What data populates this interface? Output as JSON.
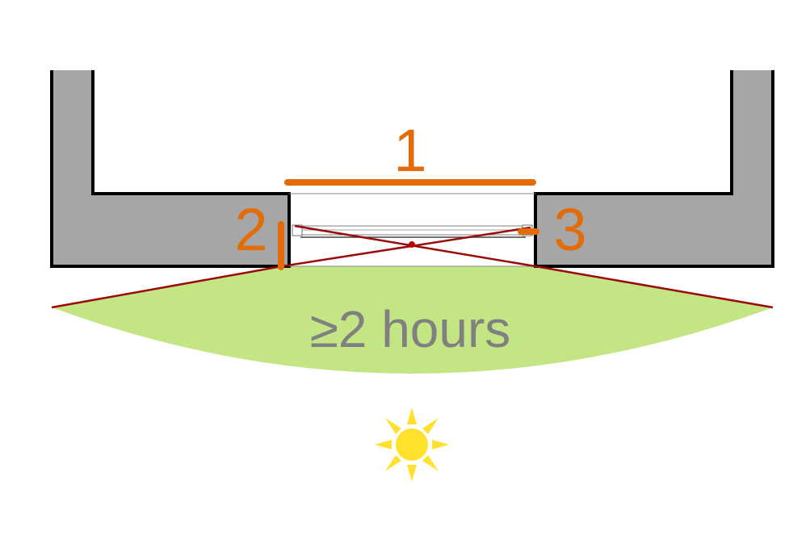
{
  "colors": {
    "wall_fill": "#a6a6a6",
    "wall_stroke": "#000000",
    "accent_orange": "#e36c09",
    "sunlight_zone": "#c3e584",
    "ray_line": "#9b0b0b",
    "caption_text": "#808080",
    "sun": "#ffe12e"
  },
  "labels": {
    "window_width": "1",
    "left_reveal": "2",
    "right_reveal": "3",
    "sunlight_duration": "≥2 hours"
  },
  "icons": {
    "sun": "sun-icon"
  }
}
